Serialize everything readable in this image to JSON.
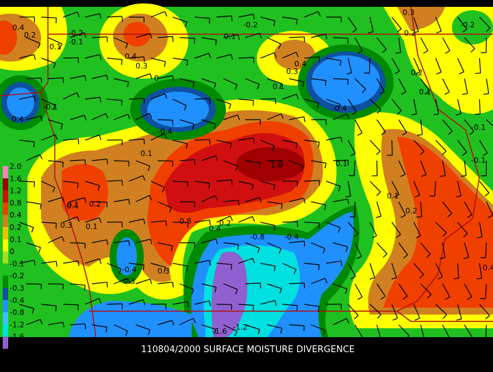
{
  "title": "110804/2000 SURFACE MOISTURE DIVERGENCE",
  "legend": [
    {
      "label": "2.0",
      "color": "#ff80c0"
    },
    {
      "label": "1.6",
      "color": "#a00000"
    },
    {
      "label": "1.2",
      "color": "#d01010"
    },
    {
      "label": "0.8",
      "color": "#f04000"
    },
    {
      "label": "0.4",
      "color": "#d08020"
    },
    {
      "label": "0.2",
      "color": "#f0c000"
    },
    {
      "label": "0.1",
      "color": "#ffff00"
    },
    {
      "label": "0",
      "color": "#a0e020"
    },
    {
      "label": "-0.1",
      "color": "#20c020"
    },
    {
      "label": "-0.2",
      "color": "#008a00"
    },
    {
      "label": "-0.3",
      "color": "#1050a0"
    },
    {
      "label": "-0.4",
      "color": "#2090ff"
    },
    {
      "label": "-0.8",
      "color": "#40c0ff"
    },
    {
      "label": "-1.2",
      "color": "#00e0e0"
    },
    {
      "label": "-1.6",
      "color": "#9060d0"
    }
  ],
  "contour_labels": [
    "0.4",
    "0.2",
    "-0.2",
    "-0.1",
    "0.1",
    "0.4",
    "0.3",
    "0",
    "-0.2",
    "0.1",
    "0.3",
    "0.2",
    "-0.2",
    "0.4",
    "0.3",
    "0.1",
    "0.2",
    "0.1",
    "-0.4",
    "0.4",
    "-0.1",
    "-0.4",
    "0.1",
    "0.1",
    "1.6",
    "0.1",
    "0.4",
    "0.2",
    "0.3",
    "0.1",
    "0.8",
    "0.4",
    "-0.8",
    "-0.4",
    "0.2",
    "0.3",
    "-0.4",
    "0.3",
    "-1.6",
    "-1.2",
    "0.1",
    "0.4",
    "0.2",
    "-0.1",
    "-0.1"
  ]
}
